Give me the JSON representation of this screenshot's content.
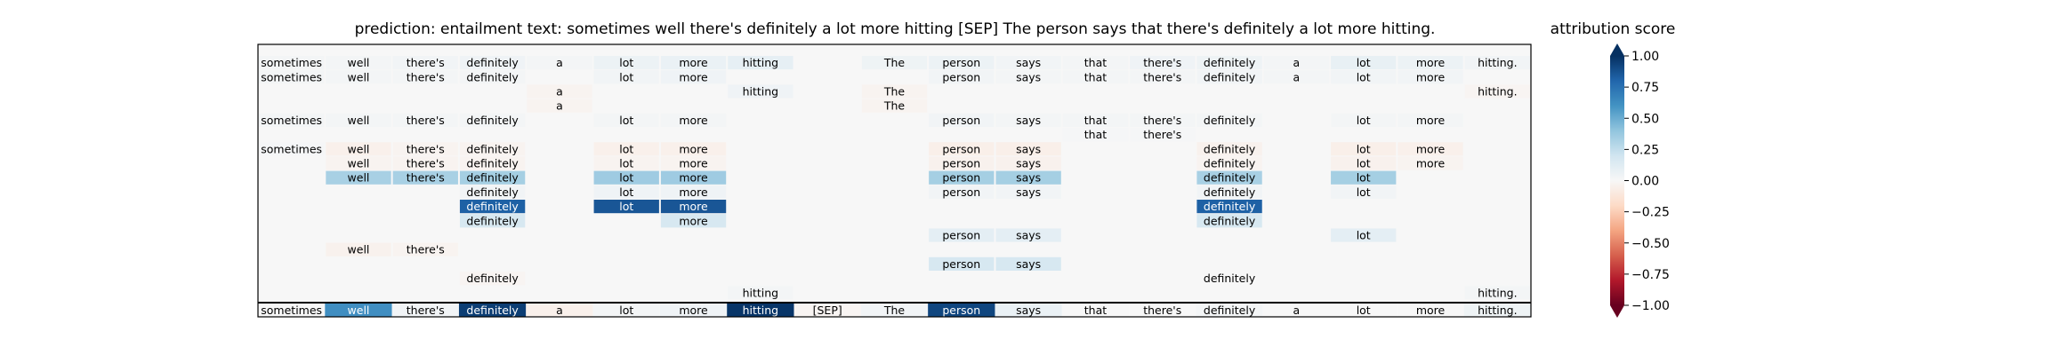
{
  "chart_data": {
    "type": "heatmap",
    "title": "prediction:  entailment     text:  sometimes well there's definitely a lot more hitting [SEP] The person says that there's definitely a lot more hitting.",
    "colorbar": {
      "label": "attribution score",
      "ticks": [
        "1.00",
        "0.75",
        "0.50",
        "0.25",
        "0.00",
        "−0.25",
        "−0.50",
        "−0.75",
        "−1.00"
      ],
      "range": [
        -1.0,
        1.0
      ],
      "colormap": [
        "#67001f",
        "#b2182b",
        "#d6604d",
        "#f4a582",
        "#fddbc7",
        "#f7f7f7",
        "#d1e5f0",
        "#92c5de",
        "#4393c3",
        "#2166ac",
        "#053061"
      ]
    },
    "tokens": [
      "sometimes",
      "well",
      "there's",
      "definitely",
      "a",
      "lot",
      "more",
      "hitting",
      "[SEP]",
      "The",
      "person",
      "says",
      "that",
      "there's",
      "definitely",
      "a",
      "lot",
      "more",
      "hitting."
    ],
    "token_scores": [
      0.0,
      0.62,
      0.03,
      0.95,
      -0.05,
      0.02,
      0.04,
      0.98,
      -0.02,
      0.03,
      0.92,
      0.07,
      0.0,
      0.0,
      0.02,
      0.0,
      0.0,
      0.0,
      0.05
    ],
    "layers": [
      {
        "tokens": [
          "sometimes",
          "well",
          "there's",
          "definitely",
          "a",
          "lot",
          "more",
          "hitting",
          "",
          "The",
          "person",
          "says",
          "that",
          "there's",
          "definitely",
          "a",
          "lot",
          "more",
          "hitting."
        ],
        "scores": [
          0.02,
          0.02,
          0.03,
          0.04,
          0.02,
          0.06,
          0.07,
          0.09,
          0,
          0.05,
          0.06,
          0.03,
          0.02,
          0.04,
          0.05,
          0.02,
          0.08,
          0.06,
          0.03
        ]
      },
      {
        "tokens": [
          "sometimes",
          "well",
          "there's",
          "definitely",
          "",
          "lot",
          "more",
          "",
          "",
          "",
          "person",
          "says",
          "that",
          "there's",
          "definitely",
          "a",
          "lot",
          "more",
          ""
        ],
        "scores": [
          0.02,
          0.02,
          0.02,
          0.02,
          0,
          0.03,
          0.04,
          0,
          0,
          0,
          0.03,
          0.02,
          0.02,
          0.02,
          0.03,
          0.02,
          0.03,
          0.03,
          0
        ]
      },
      {
        "tokens": [
          "",
          "",
          "",
          "",
          "a",
          "",
          "",
          "hitting",
          "",
          "The",
          "",
          "",
          "",
          "",
          "",
          "",
          "",
          "",
          "hitting."
        ],
        "scores": [
          0,
          0,
          0,
          0,
          -0.03,
          0,
          0,
          0.04,
          0,
          -0.03,
          0,
          0,
          0,
          0,
          0,
          0,
          0,
          0,
          -0.02
        ]
      },
      {
        "tokens": [
          "",
          "",
          "",
          "",
          "a",
          "",
          "",
          "",
          "",
          "The",
          "",
          "",
          "",
          "",
          "",
          "",
          "",
          "",
          ""
        ],
        "scores": [
          0,
          0,
          0,
          0,
          -0.03,
          0,
          0,
          0,
          0,
          -0.03,
          0,
          0,
          0,
          0,
          0,
          0,
          0,
          0,
          0
        ]
      },
      {
        "tokens": [
          "sometimes",
          "well",
          "there's",
          "definitely",
          "",
          "lot",
          "more",
          "",
          "",
          "",
          "person",
          "says",
          "that",
          "there's",
          "definitely",
          "",
          "lot",
          "more",
          ""
        ],
        "scores": [
          0.02,
          0.02,
          0.02,
          0.02,
          0,
          0.02,
          0.02,
          0,
          0,
          0,
          0.03,
          0.02,
          0.02,
          0.02,
          0.02,
          0,
          0.02,
          0.02,
          0
        ]
      },
      {
        "tokens": [
          "",
          "",
          "",
          "",
          "",
          "",
          "",
          "",
          "",
          "",
          "",
          "",
          "that",
          "there's",
          "",
          "",
          "",
          "",
          ""
        ],
        "scores": [
          0,
          0,
          0,
          0,
          0,
          0,
          0,
          0,
          0,
          0,
          0,
          0,
          0.01,
          0.01,
          0,
          0,
          0,
          0,
          0
        ]
      },
      {
        "tokens": [
          "sometimes",
          "well",
          "there's",
          "definitely",
          "",
          "lot",
          "more",
          "",
          "",
          "",
          "person",
          "says",
          "",
          "",
          "definitely",
          "",
          "lot",
          "more",
          ""
        ],
        "scores": [
          0.01,
          -0.05,
          -0.03,
          -0.03,
          0,
          -0.05,
          -0.05,
          0,
          0,
          0,
          -0.06,
          -0.06,
          0,
          0,
          -0.04,
          0,
          -0.06,
          -0.05,
          0
        ]
      },
      {
        "tokens": [
          "",
          "well",
          "there's",
          "definitely",
          "",
          "lot",
          "more",
          "",
          "",
          "",
          "person",
          "says",
          "",
          "",
          "definitely",
          "",
          "lot",
          "more",
          ""
        ],
        "scores": [
          0,
          -0.03,
          -0.03,
          -0.03,
          0,
          -0.03,
          -0.03,
          0,
          0,
          0,
          -0.04,
          -0.04,
          0,
          0,
          -0.03,
          0,
          -0.04,
          -0.03,
          0
        ]
      },
      {
        "tokens": [
          "",
          "well",
          "there's",
          "definitely",
          "",
          "lot",
          "more",
          "",
          "",
          "",
          "person",
          "says",
          "",
          "",
          "definitely",
          "",
          "lot",
          "",
          ""
        ],
        "scores": [
          0,
          0.33,
          0.33,
          0.34,
          0,
          0.36,
          0.36,
          0,
          0,
          0,
          0.34,
          0.34,
          0,
          0,
          0.33,
          0,
          0.34,
          0,
          0
        ]
      },
      {
        "tokens": [
          "",
          "",
          "",
          "definitely",
          "",
          "lot",
          "more",
          "",
          "",
          "",
          "person",
          "says",
          "",
          "",
          "definitely",
          "",
          "lot",
          "",
          ""
        ],
        "scores": [
          0,
          0,
          0,
          0.03,
          0,
          0.04,
          0.04,
          0,
          0,
          0,
          0.03,
          0.03,
          0,
          0,
          0.03,
          0,
          0.03,
          0,
          0
        ]
      },
      {
        "tokens": [
          "",
          "",
          "",
          "definitely",
          "",
          "lot",
          "more",
          "",
          "",
          "",
          "",
          "",
          "",
          "",
          "definitely",
          "",
          "",
          "",
          ""
        ],
        "scores": [
          0,
          0,
          0,
          0.82,
          0,
          0.86,
          0.86,
          0,
          0,
          0,
          0,
          0,
          0,
          0,
          0.82,
          0,
          0,
          0,
          0
        ]
      },
      {
        "tokens": [
          "",
          "",
          "",
          "definitely",
          "",
          "",
          "more",
          "",
          "",
          "",
          "",
          "",
          "",
          "",
          "definitely",
          "",
          "",
          "",
          ""
        ],
        "scores": [
          0,
          0,
          0,
          0.17,
          0,
          0,
          0.17,
          0,
          0,
          0,
          0,
          0,
          0,
          0,
          0.17,
          0,
          0,
          0,
          0
        ]
      },
      {
        "tokens": [
          "",
          "",
          "",
          "",
          "",
          "",
          "",
          "",
          "",
          "",
          "person",
          "says",
          "",
          "",
          "",
          "",
          "lot",
          "",
          ""
        ],
        "scores": [
          0,
          0,
          0,
          0,
          0,
          0,
          0,
          0,
          0,
          0,
          0.1,
          0.1,
          0,
          0,
          0,
          0,
          0.1,
          0,
          0
        ]
      },
      {
        "tokens": [
          "",
          "well",
          "there's",
          "",
          "",
          "",
          "",
          "",
          "",
          "",
          "",
          "",
          "",
          "",
          "",
          "",
          "",
          "",
          ""
        ],
        "scores": [
          0,
          -0.04,
          -0.03,
          0,
          0,
          0,
          0,
          0,
          0,
          0,
          0,
          0,
          0,
          0,
          0,
          0,
          0,
          0,
          0
        ]
      },
      {
        "tokens": [
          "",
          "",
          "",
          "",
          "",
          "",
          "",
          "",
          "",
          "",
          "person",
          "says",
          "",
          "",
          "",
          "",
          "",
          "",
          ""
        ],
        "scores": [
          0,
          0,
          0,
          0,
          0,
          0,
          0,
          0,
          0,
          0,
          0.17,
          0.17,
          0,
          0,
          0,
          0,
          0,
          0,
          0
        ]
      },
      {
        "tokens": [
          "",
          "",
          "",
          "definitely",
          "",
          "",
          "",
          "",
          "",
          "",
          "",
          "",
          "",
          "",
          "definitely",
          "",
          "",
          "",
          ""
        ],
        "scores": [
          0,
          0,
          0,
          -0.02,
          0,
          0,
          0,
          0,
          0,
          0,
          0,
          0,
          0,
          0,
          0.0,
          0,
          0,
          0,
          0
        ]
      },
      {
        "tokens": [
          "",
          "",
          "",
          "",
          "",
          "",
          "",
          "hitting",
          "",
          "",
          "",
          "",
          "",
          "",
          "",
          "",
          "",
          "",
          "hitting."
        ],
        "scores": [
          0,
          0,
          0,
          0,
          0,
          0,
          0,
          0.02,
          0,
          0,
          0,
          0,
          0,
          0,
          0,
          0,
          0,
          0,
          0.02
        ]
      }
    ]
  }
}
